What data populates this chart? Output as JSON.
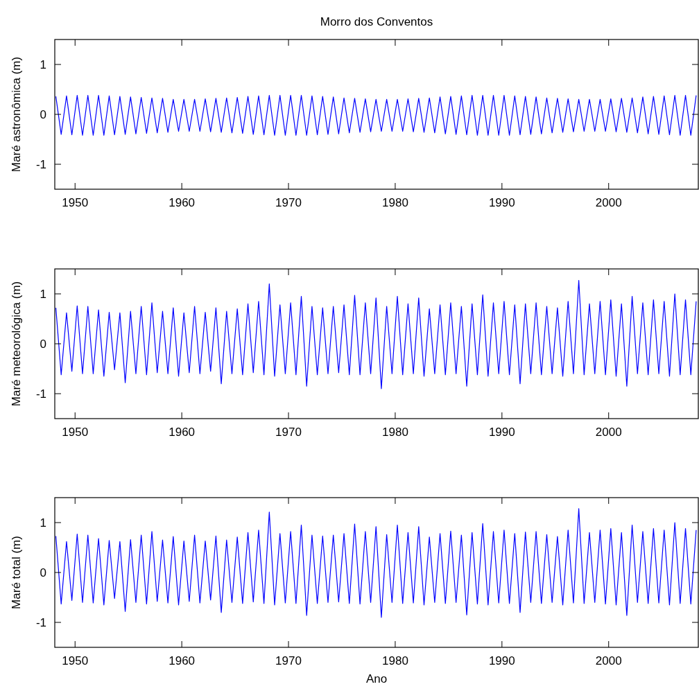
{
  "chart_data": [
    {
      "type": "line",
      "title": "Morro dos Conventos",
      "ylabel": "Maré astronômica (m)",
      "xlim": [
        1948.1,
        2008.4
      ],
      "ylim": [
        -1.5,
        1.5
      ],
      "xticks": [
        1950,
        1960,
        1970,
        1980,
        1990,
        2000
      ],
      "yticks": [
        -1,
        0,
        1
      ],
      "grid": false,
      "x": [
        1948.2,
        1948.7,
        1949.2,
        1949.7,
        1950.2,
        1950.7,
        1951.2,
        1951.7,
        1952.2,
        1952.7,
        1953.2,
        1953.7,
        1954.2,
        1954.7,
        1955.2,
        1955.7,
        1956.2,
        1956.7,
        1957.2,
        1957.7,
        1958.2,
        1958.7,
        1959.2,
        1959.7,
        1960.2,
        1960.7,
        1961.2,
        1961.7,
        1962.2,
        1962.7,
        1963.2,
        1963.7,
        1964.2,
        1964.7,
        1965.2,
        1965.7,
        1966.2,
        1966.7,
        1967.2,
        1967.7,
        1968.2,
        1968.7,
        1969.2,
        1969.7,
        1970.2,
        1970.7,
        1971.2,
        1971.7,
        1972.2,
        1972.7,
        1973.2,
        1973.7,
        1974.2,
        1974.7,
        1975.2,
        1975.7,
        1976.2,
        1976.7,
        1977.2,
        1977.7,
        1978.2,
        1978.7,
        1979.2,
        1979.7,
        1980.2,
        1980.7,
        1981.2,
        1981.7,
        1982.2,
        1982.7,
        1983.2,
        1983.7,
        1984.2,
        1984.7,
        1985.2,
        1985.7,
        1986.2,
        1986.7,
        1987.2,
        1987.7,
        1988.2,
        1988.7,
        1989.2,
        1989.7,
        1990.2,
        1990.7,
        1991.2,
        1991.7,
        1992.2,
        1992.7,
        1993.2,
        1993.7,
        1994.2,
        1994.7,
        1995.2,
        1995.7,
        1996.2,
        1996.7,
        1997.2,
        1997.7,
        1998.2,
        1998.7,
        1999.2,
        1999.7,
        2000.2,
        2000.7,
        2001.2,
        2001.7,
        2002.2,
        2002.7,
        2003.2,
        2003.7,
        2004.2,
        2004.7,
        2005.2,
        2005.7,
        2006.2,
        2006.7,
        2007.2,
        2007.7,
        2008.2
      ],
      "series": [
        {
          "color": "#0000ff",
          "values": [
            0.36,
            -0.4,
            0.37,
            -0.41,
            0.38,
            -0.42,
            0.38,
            -0.42,
            0.38,
            -0.42,
            0.37,
            -0.41,
            0.36,
            -0.4,
            0.35,
            -0.39,
            0.34,
            -0.38,
            0.33,
            -0.37,
            0.32,
            -0.36,
            0.3,
            -0.34,
            0.3,
            -0.34,
            0.3,
            -0.34,
            0.31,
            -0.35,
            0.32,
            -0.36,
            0.33,
            -0.37,
            0.34,
            -0.38,
            0.36,
            -0.4,
            0.37,
            -0.41,
            0.38,
            -0.42,
            0.38,
            -0.42,
            0.38,
            -0.42,
            0.38,
            -0.42,
            0.37,
            -0.41,
            0.36,
            -0.4,
            0.35,
            -0.39,
            0.33,
            -0.37,
            0.32,
            -0.36,
            0.31,
            -0.35,
            0.3,
            -0.34,
            0.3,
            -0.34,
            0.3,
            -0.34,
            0.31,
            -0.35,
            0.32,
            -0.36,
            0.33,
            -0.37,
            0.35,
            -0.39,
            0.36,
            -0.4,
            0.37,
            -0.41,
            0.38,
            -0.42,
            0.38,
            -0.42,
            0.38,
            -0.42,
            0.38,
            -0.42,
            0.37,
            -0.41,
            0.36,
            -0.4,
            0.35,
            -0.39,
            0.33,
            -0.37,
            0.32,
            -0.36,
            0.31,
            -0.35,
            0.3,
            -0.34,
            0.3,
            -0.34,
            0.3,
            -0.34,
            0.31,
            -0.35,
            0.32,
            -0.36,
            0.33,
            -0.37,
            0.35,
            -0.39,
            0.36,
            -0.4,
            0.37,
            -0.41,
            0.38,
            -0.42,
            0.38,
            -0.42,
            0.38
          ]
        }
      ]
    },
    {
      "type": "line",
      "ylabel": "Maré meteorológica (m)",
      "xlim": [
        1948.1,
        2008.4
      ],
      "ylim": [
        -1.5,
        1.5
      ],
      "xticks": [
        1950,
        1960,
        1970,
        1980,
        1990,
        2000
      ],
      "yticks": [
        -1,
        0,
        1
      ],
      "grid": false,
      "x": [
        1948.2,
        1948.7,
        1949.2,
        1949.7,
        1950.2,
        1950.7,
        1951.2,
        1951.7,
        1952.2,
        1952.7,
        1953.2,
        1953.7,
        1954.2,
        1954.7,
        1955.2,
        1955.7,
        1956.2,
        1956.7,
        1957.2,
        1957.7,
        1958.2,
        1958.7,
        1959.2,
        1959.7,
        1960.2,
        1960.7,
        1961.2,
        1961.7,
        1962.2,
        1962.7,
        1963.2,
        1963.7,
        1964.2,
        1964.7,
        1965.2,
        1965.7,
        1966.2,
        1966.7,
        1967.2,
        1967.7,
        1968.2,
        1968.7,
        1969.2,
        1969.7,
        1970.2,
        1970.7,
        1971.2,
        1971.7,
        1972.2,
        1972.7,
        1973.2,
        1973.7,
        1974.2,
        1974.7,
        1975.2,
        1975.7,
        1976.2,
        1976.7,
        1977.2,
        1977.7,
        1978.2,
        1978.7,
        1979.2,
        1979.7,
        1980.2,
        1980.7,
        1981.2,
        1981.7,
        1982.2,
        1982.7,
        1983.2,
        1983.7,
        1984.2,
        1984.7,
        1985.2,
        1985.7,
        1986.2,
        1986.7,
        1987.2,
        1987.7,
        1988.2,
        1988.7,
        1989.2,
        1989.7,
        1990.2,
        1990.7,
        1991.2,
        1991.7,
        1992.2,
        1992.7,
        1993.2,
        1993.7,
        1994.2,
        1994.7,
        1995.2,
        1995.7,
        1996.2,
        1996.7,
        1997.2,
        1997.7,
        1998.2,
        1998.7,
        1999.2,
        1999.7,
        2000.2,
        2000.7,
        2001.2,
        2001.7,
        2002.2,
        2002.7,
        2003.2,
        2003.7,
        2004.2,
        2004.7,
        2005.2,
        2005.7,
        2006.2,
        2006.7,
        2007.2,
        2007.7,
        2008.2
      ],
      "series": [
        {
          "color": "#0000ff",
          "values": [
            0.72,
            -0.62,
            0.62,
            -0.55,
            0.76,
            -0.6,
            0.75,
            -0.6,
            0.68,
            -0.65,
            0.63,
            -0.52,
            0.62,
            -0.78,
            0.65,
            -0.6,
            0.75,
            -0.62,
            0.82,
            -0.58,
            0.65,
            -0.6,
            0.72,
            -0.65,
            0.62,
            -0.58,
            0.75,
            -0.6,
            0.63,
            -0.55,
            0.72,
            -0.8,
            0.65,
            -0.6,
            0.7,
            -0.62,
            0.8,
            -0.58,
            0.85,
            -0.62,
            1.2,
            -0.65,
            0.78,
            -0.6,
            0.82,
            -0.62,
            0.95,
            -0.85,
            0.75,
            -0.62,
            0.72,
            -0.6,
            0.75,
            -0.58,
            0.78,
            -0.62,
            0.97,
            -0.62,
            0.82,
            -0.6,
            0.92,
            -0.9,
            0.75,
            -0.6,
            0.95,
            -0.62,
            0.8,
            -0.6,
            0.92,
            -0.65,
            0.7,
            -0.6,
            0.78,
            -0.62,
            0.82,
            -0.6,
            0.75,
            -0.85,
            0.8,
            -0.62,
            0.98,
            -0.65,
            0.82,
            -0.6,
            0.85,
            -0.62,
            0.78,
            -0.8,
            0.8,
            -0.6,
            0.82,
            -0.62,
            0.75,
            -0.6,
            0.72,
            -0.65,
            0.85,
            -0.6,
            1.27,
            -0.62,
            0.8,
            -0.6,
            0.85,
            -0.62,
            0.88,
            -0.65,
            0.8,
            -0.85,
            0.95,
            -0.6,
            0.82,
            -0.62,
            0.88,
            -0.6,
            0.85,
            -0.65,
            1.0,
            -0.62,
            0.88,
            -0.62,
            0.85
          ]
        }
      ]
    },
    {
      "type": "line",
      "xlabel": "Ano",
      "ylabel": "Maré total (m)",
      "xlim": [
        1948.1,
        2008.4
      ],
      "ylim": [
        -1.5,
        1.5
      ],
      "xticks": [
        1950,
        1960,
        1970,
        1980,
        1990,
        2000
      ],
      "yticks": [
        -1,
        0,
        1
      ],
      "grid": false,
      "x": [
        1948.2,
        1948.7,
        1949.2,
        1949.7,
        1950.2,
        1950.7,
        1951.2,
        1951.7,
        1952.2,
        1952.7,
        1953.2,
        1953.7,
        1954.2,
        1954.7,
        1955.2,
        1955.7,
        1956.2,
        1956.7,
        1957.2,
        1957.7,
        1958.2,
        1958.7,
        1959.2,
        1959.7,
        1960.2,
        1960.7,
        1961.2,
        1961.7,
        1962.2,
        1962.7,
        1963.2,
        1963.7,
        1964.2,
        1964.7,
        1965.2,
        1965.7,
        1966.2,
        1966.7,
        1967.2,
        1967.7,
        1968.2,
        1968.7,
        1969.2,
        1969.7,
        1970.2,
        1970.7,
        1971.2,
        1971.7,
        1972.2,
        1972.7,
        1973.2,
        1973.7,
        1974.2,
        1974.7,
        1975.2,
        1975.7,
        1976.2,
        1976.7,
        1977.2,
        1977.7,
        1978.2,
        1978.7,
        1979.2,
        1979.7,
        1980.2,
        1980.7,
        1981.2,
        1981.7,
        1982.2,
        1982.7,
        1983.2,
        1983.7,
        1984.2,
        1984.7,
        1985.2,
        1985.7,
        1986.2,
        1986.7,
        1987.2,
        1987.7,
        1988.2,
        1988.7,
        1989.2,
        1989.7,
        1990.2,
        1990.7,
        1991.2,
        1991.7,
        1992.2,
        1992.7,
        1993.2,
        1993.7,
        1994.2,
        1994.7,
        1995.2,
        1995.7,
        1996.2,
        1996.7,
        1997.2,
        1997.7,
        1998.2,
        1998.7,
        1999.2,
        1999.7,
        2000.2,
        2000.7,
        2001.2,
        2001.7,
        2002.2,
        2002.7,
        2003.2,
        2003.7,
        2004.2,
        2004.7,
        2005.2,
        2005.7,
        2006.2,
        2006.7,
        2007.2,
        2007.7,
        2008.2
      ],
      "series": [
        {
          "color": "#0000ff",
          "values": [
            0.73,
            -0.63,
            0.62,
            -0.56,
            0.77,
            -0.6,
            0.75,
            -0.61,
            0.68,
            -0.65,
            0.64,
            -0.52,
            0.62,
            -0.78,
            0.66,
            -0.6,
            0.75,
            -0.63,
            0.82,
            -0.58,
            0.65,
            -0.61,
            0.72,
            -0.65,
            0.63,
            -0.58,
            0.75,
            -0.61,
            0.63,
            -0.55,
            0.73,
            -0.8,
            0.65,
            -0.6,
            0.71,
            -0.62,
            0.8,
            -0.59,
            0.85,
            -0.62,
            1.21,
            -0.65,
            0.78,
            -0.61,
            0.82,
            -0.62,
            0.95,
            -0.86,
            0.75,
            -0.62,
            0.73,
            -0.6,
            0.75,
            -0.59,
            0.78,
            -0.62,
            0.97,
            -0.63,
            0.82,
            -0.6,
            0.92,
            -0.9,
            0.76,
            -0.6,
            0.95,
            -0.62,
            0.8,
            -0.61,
            0.92,
            -0.65,
            0.71,
            -0.6,
            0.78,
            -0.62,
            0.83,
            -0.6,
            0.75,
            -0.85,
            0.8,
            -0.63,
            0.98,
            -0.65,
            0.82,
            -0.61,
            0.85,
            -0.62,
            0.78,
            -0.8,
            0.81,
            -0.6,
            0.82,
            -0.62,
            0.76,
            -0.6,
            0.72,
            -0.65,
            0.85,
            -0.61,
            1.28,
            -0.62,
            0.8,
            -0.6,
            0.85,
            -0.63,
            0.88,
            -0.65,
            0.8,
            -0.86,
            0.95,
            -0.6,
            0.82,
            -0.62,
            0.88,
            -0.61,
            0.85,
            -0.65,
            1.0,
            -0.62,
            0.88,
            -0.63,
            0.85
          ]
        }
      ]
    }
  ]
}
